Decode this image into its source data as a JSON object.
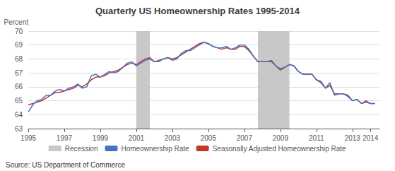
{
  "chart_data": {
    "type": "line",
    "title": "Quarterly US Homeownership Rates 1995-2014",
    "ylabel": "Percent",
    "annotation": "Source: US Department of Commerce",
    "xlim": [
      1995.0,
      2014.5
    ],
    "xticks": [
      1995,
      1997,
      1999,
      2001,
      2003,
      2005,
      2007,
      2009,
      2011,
      2013,
      2014
    ],
    "ylim": [
      63,
      70
    ],
    "yticks": [
      63,
      64,
      65,
      66,
      67,
      68,
      69,
      70
    ],
    "grid": true,
    "legend": "bottom",
    "bands": [
      {
        "name": "Recession",
        "color": "#c8c8c8",
        "ranges": [
          [
            2001.0,
            2001.75
          ],
          [
            2007.75,
            2009.5
          ]
        ]
      }
    ],
    "x": [
      1995.0,
      1995.25,
      1995.5,
      1995.75,
      1996.0,
      1996.25,
      1996.5,
      1996.75,
      1997.0,
      1997.25,
      1997.5,
      1997.75,
      1998.0,
      1998.25,
      1998.5,
      1998.75,
      1999.0,
      1999.25,
      1999.5,
      1999.75,
      2000.0,
      2000.25,
      2000.5,
      2000.75,
      2001.0,
      2001.25,
      2001.5,
      2001.75,
      2002.0,
      2002.25,
      2002.5,
      2002.75,
      2003.0,
      2003.25,
      2003.5,
      2003.75,
      2004.0,
      2004.25,
      2004.5,
      2004.75,
      2005.0,
      2005.25,
      2005.5,
      2005.75,
      2006.0,
      2006.25,
      2006.5,
      2006.75,
      2007.0,
      2007.25,
      2007.5,
      2007.75,
      2008.0,
      2008.25,
      2008.5,
      2008.75,
      2009.0,
      2009.25,
      2009.5,
      2009.75,
      2010.0,
      2010.25,
      2010.5,
      2010.75,
      2011.0,
      2011.25,
      2011.5,
      2011.75,
      2012.0,
      2012.25,
      2012.5,
      2012.75,
      2013.0,
      2013.25,
      2013.5,
      2013.75,
      2014.0,
      2014.25
    ],
    "series": [
      {
        "name": "Homeownership Rate",
        "color": "#4472c4",
        "values": [
          64.2,
          64.7,
          65.0,
          65.1,
          65.4,
          65.4,
          65.7,
          65.8,
          65.7,
          65.9,
          66.0,
          66.2,
          65.9,
          66.0,
          66.8,
          66.9,
          66.7,
          66.9,
          67.1,
          67.0,
          67.1,
          67.4,
          67.7,
          67.8,
          67.5,
          67.7,
          67.9,
          68.0,
          67.8,
          67.8,
          68.0,
          68.1,
          67.9,
          68.0,
          68.4,
          68.6,
          68.6,
          68.8,
          69.0,
          69.2,
          69.1,
          68.9,
          68.8,
          68.8,
          68.9,
          68.7,
          68.8,
          69.0,
          69.0,
          68.7,
          68.2,
          67.8,
          67.8,
          67.8,
          67.8,
          67.5,
          67.3,
          67.4,
          67.6,
          67.5,
          67.1,
          66.9,
          66.9,
          66.9,
          66.5,
          66.4,
          65.9,
          66.3,
          65.4,
          65.5,
          65.5,
          65.3,
          65.0,
          65.1,
          64.8,
          64.9,
          64.8,
          64.8
        ]
      },
      {
        "name": "Seasonally Adjusted Homeownership Rate",
        "color": "#c0392b",
        "values": [
          64.7,
          64.8,
          64.9,
          65.0,
          65.2,
          65.4,
          65.6,
          65.6,
          65.7,
          65.8,
          65.9,
          66.1,
          66.0,
          66.2,
          66.5,
          66.7,
          66.7,
          66.8,
          67.0,
          67.1,
          67.2,
          67.4,
          67.6,
          67.7,
          67.6,
          67.8,
          68.0,
          68.1,
          67.8,
          67.9,
          68.0,
          68.1,
          68.0,
          68.1,
          68.3,
          68.5,
          68.7,
          68.9,
          69.1,
          69.2,
          69.1,
          68.9,
          68.8,
          68.7,
          68.8,
          68.7,
          68.7,
          68.9,
          68.9,
          68.6,
          68.2,
          67.8,
          67.8,
          67.8,
          67.9,
          67.5,
          67.2,
          67.4,
          67.6,
          67.5,
          67.1,
          66.9,
          66.9,
          66.9,
          66.5,
          66.3,
          65.9,
          66.1,
          65.5,
          65.5,
          65.5,
          65.4,
          65.0,
          65.1,
          64.8,
          65.0,
          64.8,
          64.8
        ]
      }
    ]
  }
}
